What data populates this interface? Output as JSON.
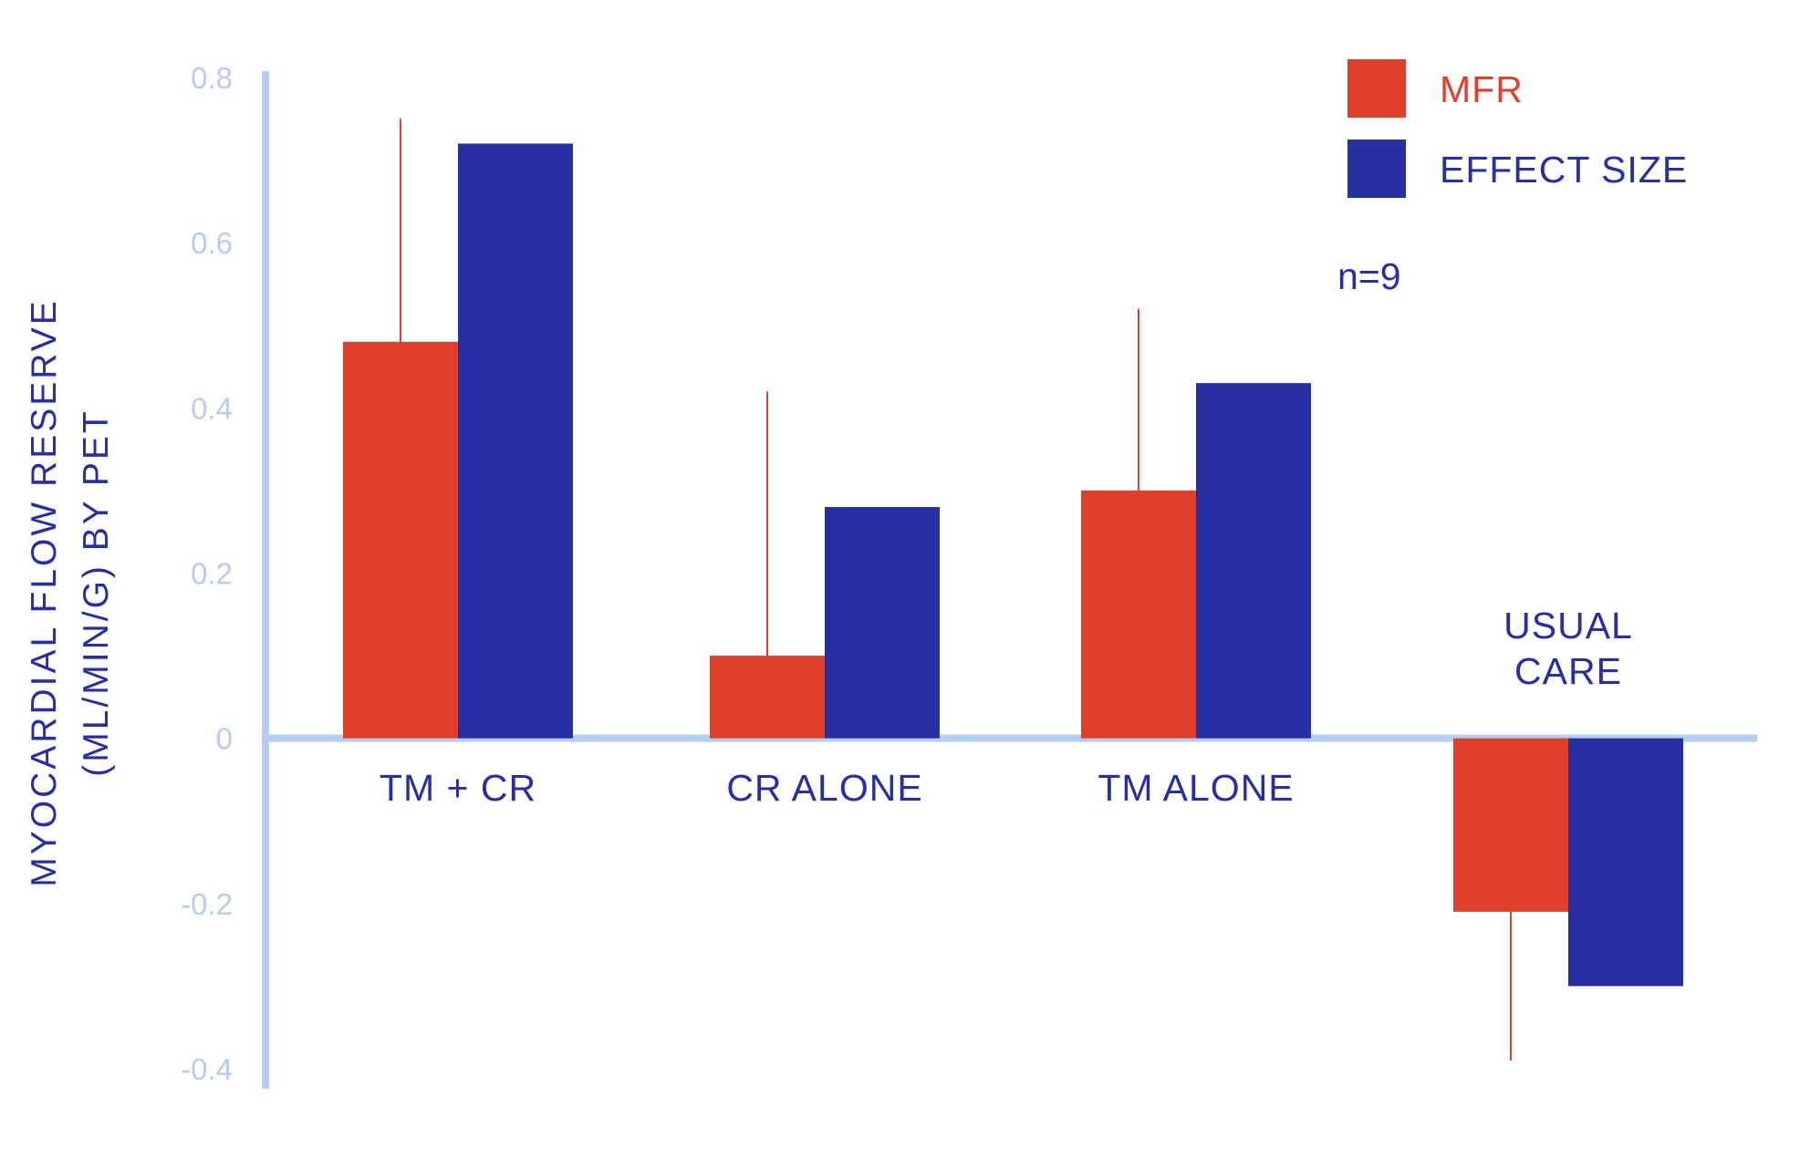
{
  "chart_data": {
    "type": "bar",
    "title": "",
    "ylabel_lines": [
      "MYOCARDIAL FLOW RESERVE",
      "(ML/MIN/G) BY PET"
    ],
    "xlabel": "",
    "ylim": [
      -0.4,
      0.8
    ],
    "yticks": [
      0.8,
      0.6,
      0.4,
      0.2,
      0,
      -0.2,
      -0.4
    ],
    "ytick_labels": [
      "0.8",
      "0.6",
      "0.4",
      "0.2",
      "0",
      "-0.2",
      "-0.4"
    ],
    "categories": [
      "TM + CR",
      "CR ALONE",
      "TM ALONE",
      "USUAL CARE"
    ],
    "category_label_lines": [
      [
        "TM + CR"
      ],
      [
        "CR ALONE"
      ],
      [
        "TM ALONE"
      ],
      [
        "USUAL",
        "CARE"
      ]
    ],
    "series": [
      {
        "name": "MFR",
        "values": [
          0.48,
          0.1,
          0.3,
          -0.21
        ],
        "error_bar_ends": [
          0.75,
          0.42,
          0.52,
          -0.39
        ]
      },
      {
        "name": "EFFECT SIZE",
        "values": [
          0.72,
          0.28,
          0.43,
          -0.3
        ]
      }
    ],
    "legend_position": "top-right",
    "annotation": "n=9",
    "grid": false
  },
  "colors": {
    "mfr": "#e0402a",
    "effect": "#2730a0",
    "axis": "#b4cdf0"
  }
}
